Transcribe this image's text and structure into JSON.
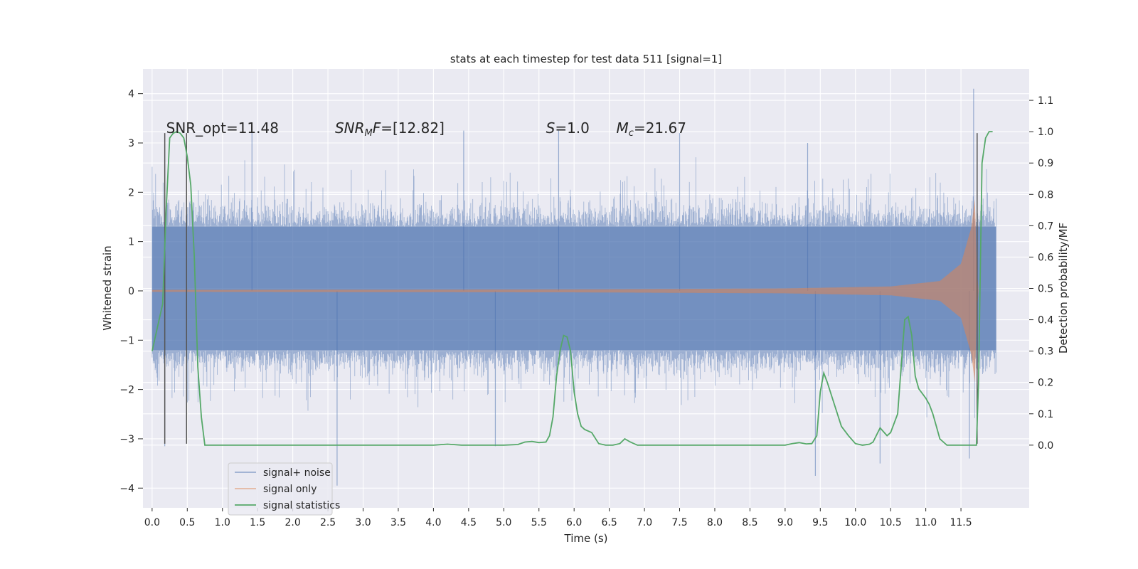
{
  "chart_data": {
    "type": "line",
    "title": "stats at each timestep for test data 511 [signal=1]",
    "xlabel": "Time (s)",
    "ylabel_left": "Whitened strain",
    "ylabel_right": "Detection probability/MF",
    "xlim": [
      -0.13,
      12.47
    ],
    "ylim_left": [
      -4.4,
      4.5
    ],
    "ylim_right": [
      -0.2,
      1.2
    ],
    "x_ticks": [
      0.0,
      0.5,
      1.0,
      1.5,
      2.0,
      2.5,
      3.0,
      3.5,
      4.0,
      4.5,
      5.0,
      5.5,
      6.0,
      6.5,
      7.0,
      7.5,
      8.0,
      8.5,
      9.0,
      9.5,
      10.0,
      10.5,
      11.0,
      11.5
    ],
    "x_tick_labels": [
      "0.0",
      "0.5",
      "1.0",
      "1.5",
      "2.0",
      "2.5",
      "3.0",
      "3.5",
      "4.0",
      "4.5",
      "5.0",
      "5.5",
      "6.0",
      "6.5",
      "7.0",
      "7.5",
      "8.0",
      "8.5",
      "9.0",
      "9.5",
      "10.0",
      "10.5",
      "11.0",
      "11.5"
    ],
    "y_left_ticks": [
      4,
      3,
      2,
      1,
      0,
      -1,
      -2,
      -3,
      -4
    ],
    "y_left_tick_labels": [
      "4",
      "3",
      "2",
      "1",
      "0",
      "−1",
      "−2",
      "−3",
      "−4"
    ],
    "y_right_ticks": [
      1.1,
      1.0,
      0.9,
      0.8,
      0.7,
      0.6,
      0.5,
      0.4,
      0.3,
      0.2,
      0.1,
      0.0
    ],
    "y_right_tick_labels": [
      "1.1",
      "1.0",
      "0.9",
      "0.8",
      "0.7",
      "0.6",
      "0.5",
      "0.4",
      "0.3",
      "0.2",
      "0.1",
      "0.0"
    ],
    "grid": true,
    "legend_position": "lower-left",
    "annotations": [
      {
        "prefix": "SNR_opt=",
        "value": "11.48",
        "x": 0.2,
        "y": 3.2
      },
      {
        "symbol": "SNR",
        "sub": "M",
        "tail": "F",
        "value": "=[12.82]",
        "x": 2.6,
        "y": 3.2
      },
      {
        "symbol": "S",
        "value": "=1.0",
        "x": 5.6,
        "y": 3.2
      },
      {
        "symbol": "M",
        "sub": "c",
        "value": "=21.67",
        "x": 6.6,
        "y": 3.2
      }
    ],
    "markers": [
      {
        "x": 0.18,
        "y": [
          -3.1,
          3.2
        ]
      },
      {
        "x": 0.49,
        "y": [
          -3.1,
          3.2
        ]
      },
      {
        "x": 11.73,
        "y": [
          -3.1,
          3.2
        ]
      }
    ],
    "series": [
      {
        "name": "signal+ noise",
        "color": "#4c72b0",
        "axis": "left",
        "kind": "noise",
        "x_range": [
          0.0,
          12.0
        ],
        "band": [
          -1.2,
          1.3
        ],
        "spikes": [
          {
            "x": 1.42,
            "y": 3.3
          },
          {
            "x": 2.63,
            "y": -3.95
          },
          {
            "x": 4.43,
            "y": 3.25
          },
          {
            "x": 5.78,
            "y": 3.25
          },
          {
            "x": 7.5,
            "y": 3.2
          },
          {
            "x": 9.43,
            "y": -3.75
          },
          {
            "x": 10.35,
            "y": -3.5
          },
          {
            "x": 11.62,
            "y": -3.4
          },
          {
            "x": 11.68,
            "y": 4.1
          },
          {
            "x": 0.18,
            "y": -3.15
          },
          {
            "x": 4.88,
            "y": -3.15
          },
          {
            "x": 9.32,
            "y": 3.0
          }
        ]
      },
      {
        "name": "signal only",
        "color": "#dd8452",
        "axis": "left",
        "kind": "chirp",
        "t_merge": 11.7,
        "x_range": [
          0.0,
          11.99
        ],
        "envelope": [
          [
            0.0,
            0.02
          ],
          [
            6.0,
            0.03
          ],
          [
            9.0,
            0.05
          ],
          [
            10.5,
            0.09
          ],
          [
            11.2,
            0.2
          ],
          [
            11.5,
            0.55
          ],
          [
            11.65,
            1.3
          ],
          [
            11.7,
            1.9
          ],
          [
            11.72,
            0.6
          ],
          [
            11.75,
            0.0
          ]
        ]
      },
      {
        "name": "signal statistics",
        "color": "#55a868",
        "axis": "right",
        "kind": "line",
        "points": [
          [
            0.0,
            0.3
          ],
          [
            0.05,
            0.35
          ],
          [
            0.1,
            0.4
          ],
          [
            0.15,
            0.45
          ],
          [
            0.2,
            0.75
          ],
          [
            0.25,
            0.98
          ],
          [
            0.3,
            0.995
          ],
          [
            0.35,
            1.0
          ],
          [
            0.4,
            0.995
          ],
          [
            0.45,
            0.98
          ],
          [
            0.5,
            0.92
          ],
          [
            0.55,
            0.83
          ],
          [
            0.6,
            0.6
          ],
          [
            0.65,
            0.25
          ],
          [
            0.7,
            0.09
          ],
          [
            0.75,
            0.0
          ],
          [
            1.0,
            0.0
          ],
          [
            2.0,
            0.0
          ],
          [
            3.0,
            0.0
          ],
          [
            4.0,
            0.0
          ],
          [
            4.2,
            0.003
          ],
          [
            4.4,
            0.0
          ],
          [
            5.0,
            0.0
          ],
          [
            5.2,
            0.002
          ],
          [
            5.3,
            0.01
          ],
          [
            5.4,
            0.012
          ],
          [
            5.5,
            0.008
          ],
          [
            5.6,
            0.01
          ],
          [
            5.65,
            0.03
          ],
          [
            5.7,
            0.09
          ],
          [
            5.75,
            0.22
          ],
          [
            5.8,
            0.3
          ],
          [
            5.85,
            0.35
          ],
          [
            5.9,
            0.345
          ],
          [
            5.95,
            0.3
          ],
          [
            6.0,
            0.17
          ],
          [
            6.05,
            0.1
          ],
          [
            6.1,
            0.06
          ],
          [
            6.15,
            0.05
          ],
          [
            6.25,
            0.04
          ],
          [
            6.35,
            0.005
          ],
          [
            6.45,
            0.0
          ],
          [
            6.55,
            0.0
          ],
          [
            6.65,
            0.005
          ],
          [
            6.72,
            0.02
          ],
          [
            6.8,
            0.01
          ],
          [
            6.9,
            0.0
          ],
          [
            7.5,
            0.0
          ],
          [
            8.5,
            0.0
          ],
          [
            9.0,
            0.0
          ],
          [
            9.1,
            0.005
          ],
          [
            9.2,
            0.008
          ],
          [
            9.3,
            0.004
          ],
          [
            9.38,
            0.005
          ],
          [
            9.45,
            0.03
          ],
          [
            9.5,
            0.17
          ],
          [
            9.55,
            0.23
          ],
          [
            9.6,
            0.2
          ],
          [
            9.7,
            0.13
          ],
          [
            9.8,
            0.06
          ],
          [
            9.9,
            0.03
          ],
          [
            10.0,
            0.005
          ],
          [
            10.1,
            0.0
          ],
          [
            10.2,
            0.003
          ],
          [
            10.25,
            0.01
          ],
          [
            10.35,
            0.055
          ],
          [
            10.45,
            0.03
          ],
          [
            10.5,
            0.04
          ],
          [
            10.6,
            0.1
          ],
          [
            10.65,
            0.25
          ],
          [
            10.7,
            0.4
          ],
          [
            10.75,
            0.41
          ],
          [
            10.8,
            0.35
          ],
          [
            10.85,
            0.22
          ],
          [
            10.9,
            0.18
          ],
          [
            11.0,
            0.15
          ],
          [
            11.05,
            0.13
          ],
          [
            11.1,
            0.1
          ],
          [
            11.15,
            0.06
          ],
          [
            11.2,
            0.02
          ],
          [
            11.3,
            0.0
          ],
          [
            11.5,
            0.0
          ],
          [
            11.72,
            0.0
          ],
          [
            11.75,
            0.2
          ],
          [
            11.8,
            0.9
          ],
          [
            11.85,
            0.98
          ],
          [
            11.9,
            1.0
          ],
          [
            11.95,
            1.0
          ]
        ]
      }
    ]
  }
}
